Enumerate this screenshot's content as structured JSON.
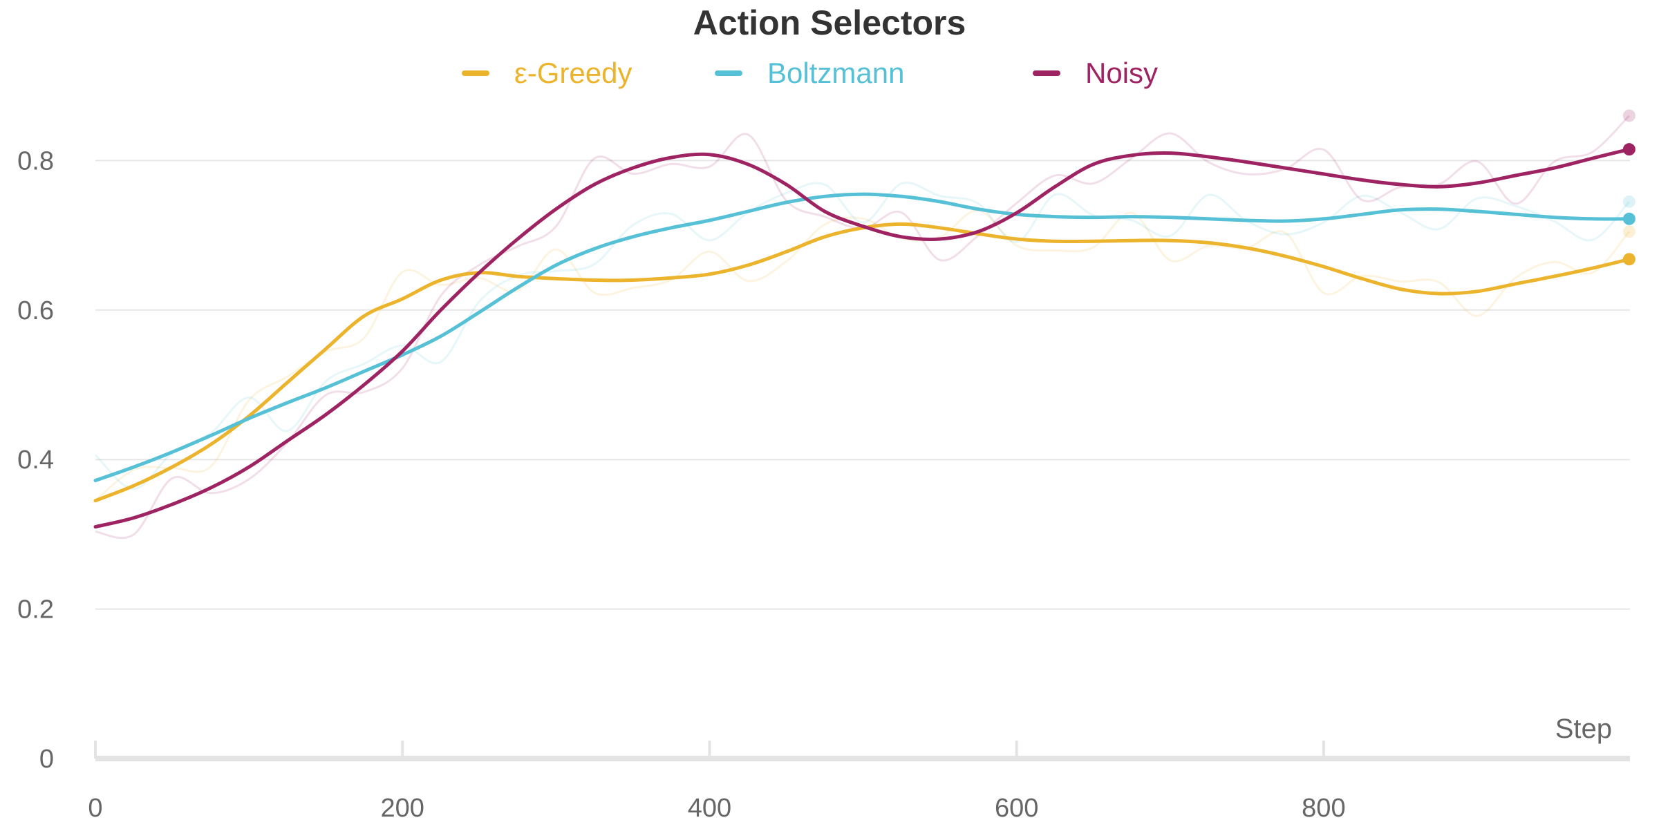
{
  "chart_data": {
    "type": "line",
    "title": "Action Selectors",
    "xlabel": "Step",
    "ylabel": "",
    "xlim": [
      0,
      1000
    ],
    "ylim": [
      0,
      0.9
    ],
    "x_ticks": [
      0,
      200,
      400,
      600,
      800
    ],
    "x_tick_labels": [
      "0",
      "200",
      "400",
      "600",
      "800"
    ],
    "y_ticks": [
      0,
      0.2,
      0.4,
      0.6,
      0.8
    ],
    "y_tick_labels": [
      "0",
      "0.2",
      "0.4",
      "0.6",
      "0.8"
    ],
    "grid": "horizontal",
    "legend_position": "top",
    "x": [
      0,
      25,
      50,
      75,
      100,
      125,
      150,
      175,
      200,
      225,
      250,
      275,
      300,
      325,
      350,
      375,
      400,
      425,
      450,
      475,
      500,
      525,
      550,
      575,
      600,
      625,
      650,
      675,
      700,
      725,
      750,
      775,
      800,
      825,
      850,
      875,
      900,
      925,
      950,
      975,
      999
    ],
    "series": [
      {
        "name": "ε-Greedy",
        "color": "#EBB42C",
        "values": [
          0.345,
          0.365,
          0.39,
          0.42,
          0.458,
          0.503,
          0.548,
          0.592,
          0.615,
          0.64,
          0.65,
          0.645,
          0.642,
          0.64,
          0.64,
          0.643,
          0.648,
          0.66,
          0.678,
          0.698,
          0.71,
          0.715,
          0.71,
          0.702,
          0.695,
          0.692,
          0.692,
          0.693,
          0.693,
          0.69,
          0.683,
          0.672,
          0.658,
          0.642,
          0.628,
          0.622,
          0.625,
          0.635,
          0.645,
          0.656,
          0.668
        ],
        "raw_end_value": 0.705
      },
      {
        "name": "Boltzmann",
        "color": "#56C1D6",
        "values": [
          0.372,
          0.39,
          0.41,
          0.432,
          0.455,
          0.476,
          0.496,
          0.518,
          0.54,
          0.565,
          0.597,
          0.63,
          0.66,
          0.682,
          0.698,
          0.71,
          0.72,
          0.732,
          0.744,
          0.752,
          0.755,
          0.752,
          0.745,
          0.735,
          0.728,
          0.725,
          0.724,
          0.725,
          0.724,
          0.722,
          0.72,
          0.719,
          0.722,
          0.728,
          0.734,
          0.735,
          0.732,
          0.728,
          0.724,
          0.722,
          0.722
        ],
        "raw_end_value": 0.745
      },
      {
        "name": "Noisy",
        "color": "#9E2362",
        "values": [
          0.31,
          0.322,
          0.34,
          0.362,
          0.39,
          0.425,
          0.46,
          0.5,
          0.545,
          0.6,
          0.65,
          0.695,
          0.735,
          0.768,
          0.79,
          0.804,
          0.808,
          0.795,
          0.768,
          0.732,
          0.712,
          0.698,
          0.695,
          0.705,
          0.73,
          0.765,
          0.795,
          0.807,
          0.81,
          0.805,
          0.798,
          0.79,
          0.782,
          0.774,
          0.768,
          0.765,
          0.77,
          0.78,
          0.79,
          0.803,
          0.815
        ],
        "raw_end_value": 0.86
      }
    ]
  }
}
